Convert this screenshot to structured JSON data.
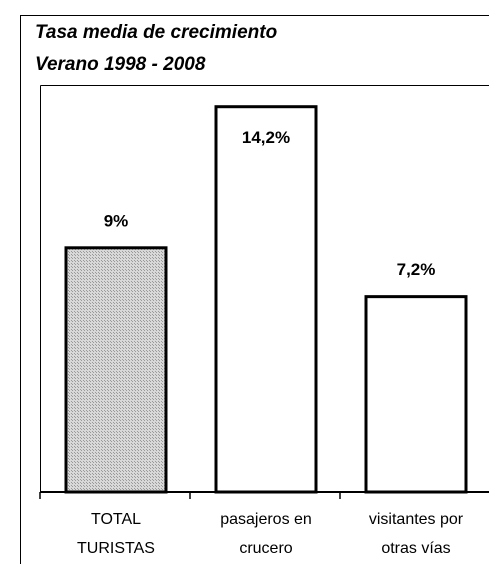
{
  "chart_data": {
    "type": "bar",
    "title": "Tasa media de crecimiento",
    "subtitle": "Verano 1998 - 2008",
    "categories": [
      [
        "TOTAL",
        "TURISTAS"
      ],
      [
        "pasajeros en",
        "crucero"
      ],
      [
        "visitantes por",
        "otras vías"
      ]
    ],
    "values": [
      9,
      14.2,
      7.2
    ],
    "value_labels": [
      "9%",
      "14,2%",
      "7,2%"
    ],
    "colors": [
      "#c8c8c8",
      "#ffffff",
      "#ffffff"
    ],
    "ylim": [
      0,
      15
    ]
  }
}
